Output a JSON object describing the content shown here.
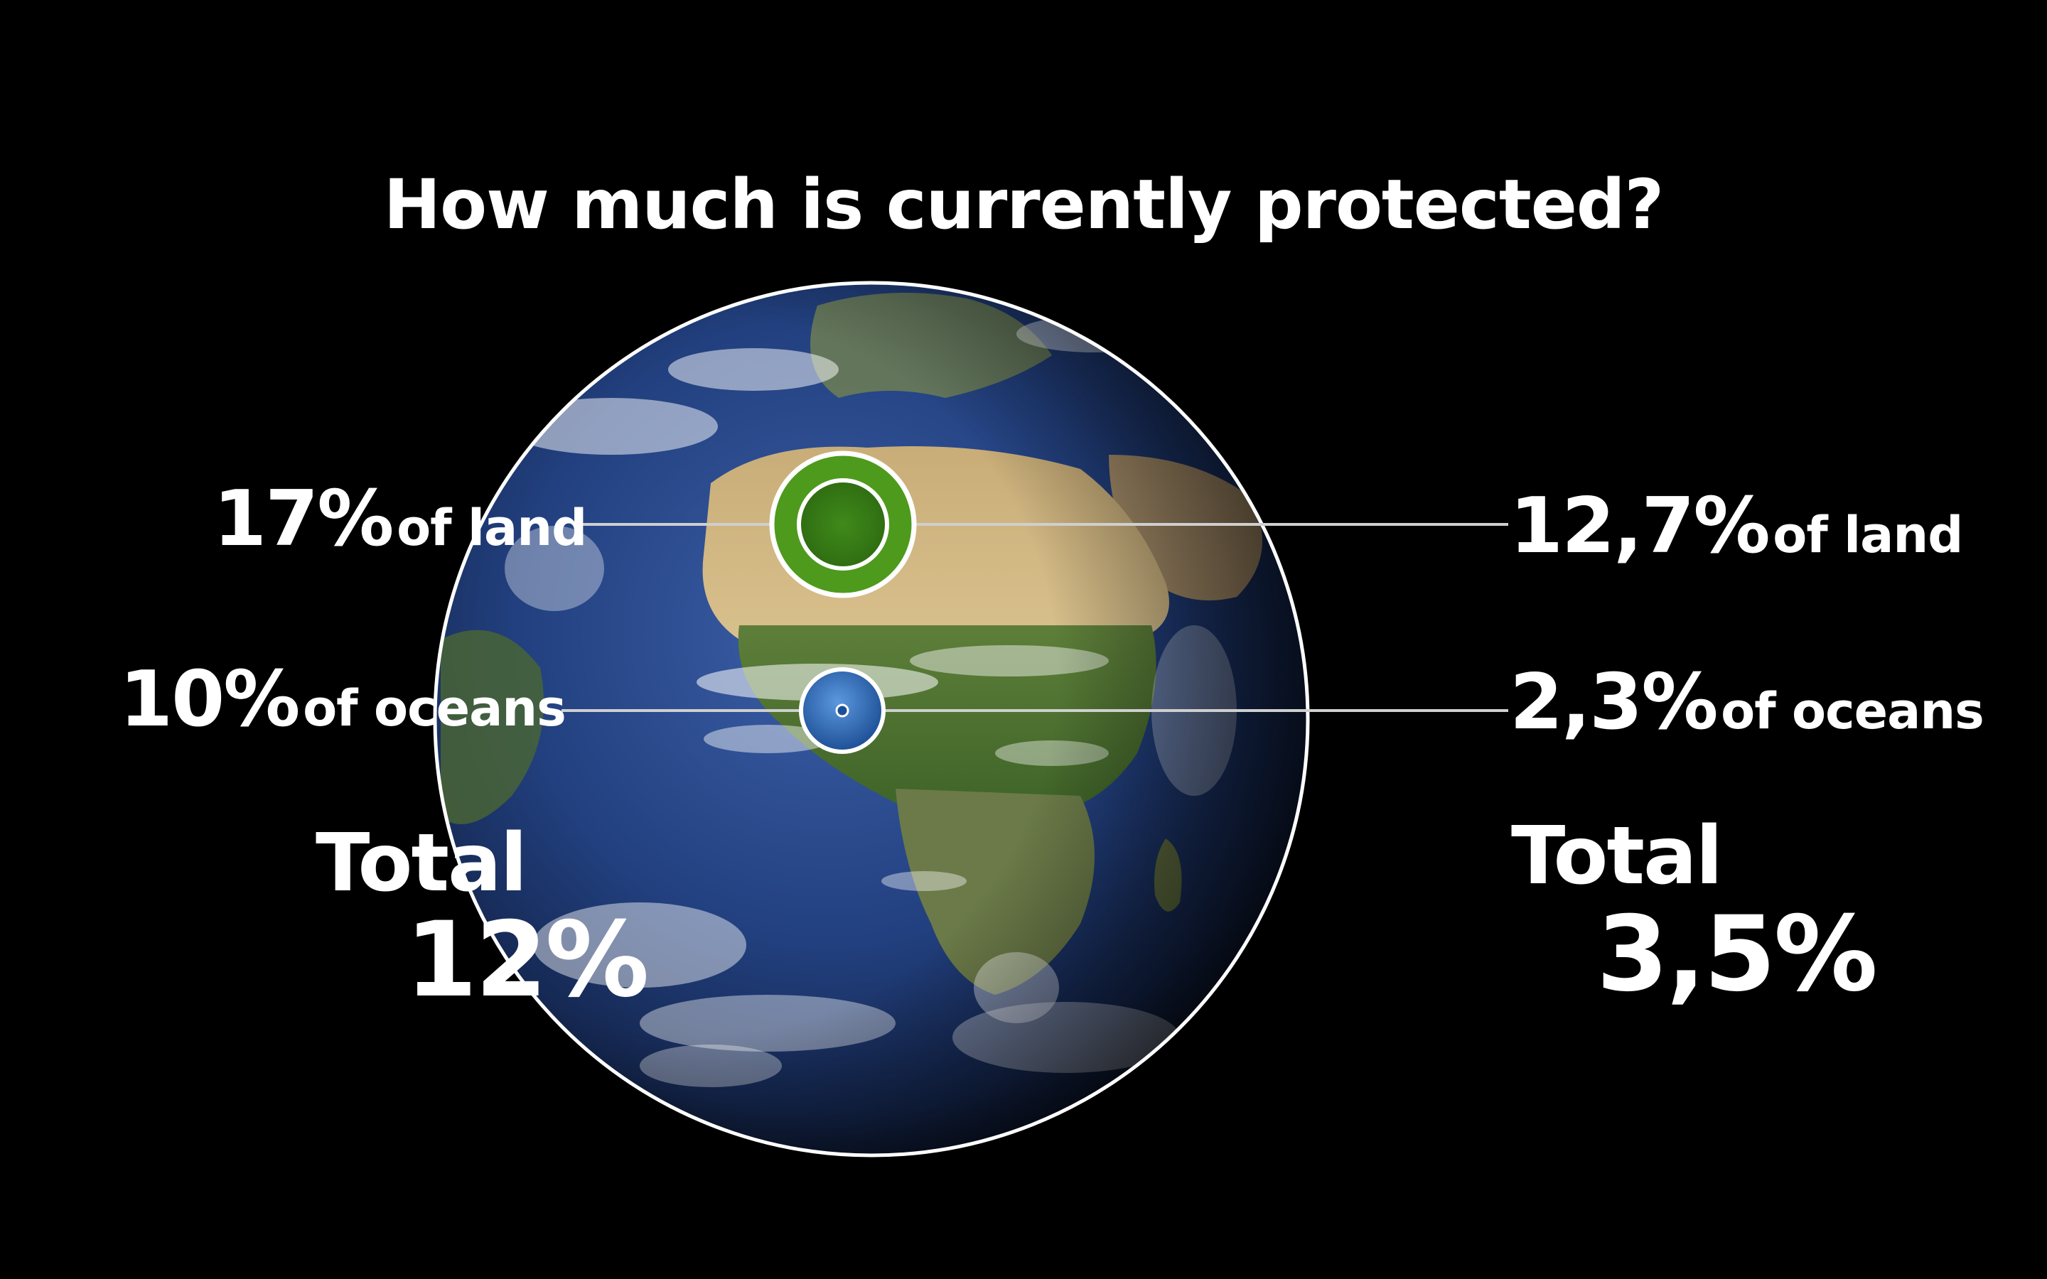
{
  "title": "How much is currently protected?",
  "left": {
    "land": {
      "value": "17%",
      "unit": "of land"
    },
    "oceans": {
      "value": "10%",
      "unit": "of oceans"
    },
    "total": {
      "label": "Total",
      "value": "12%"
    }
  },
  "right": {
    "land": {
      "value": "12,7%",
      "unit": "of land"
    },
    "oceans": {
      "value": "2,3%",
      "unit": "of oceans"
    },
    "total": {
      "label": "Total",
      "value": "3,5%"
    }
  },
  "colors": {
    "background": "#000000",
    "text": "#ffffff",
    "land_marker": "#4e9a1d",
    "ocean_marker": "#2f74c8"
  }
}
